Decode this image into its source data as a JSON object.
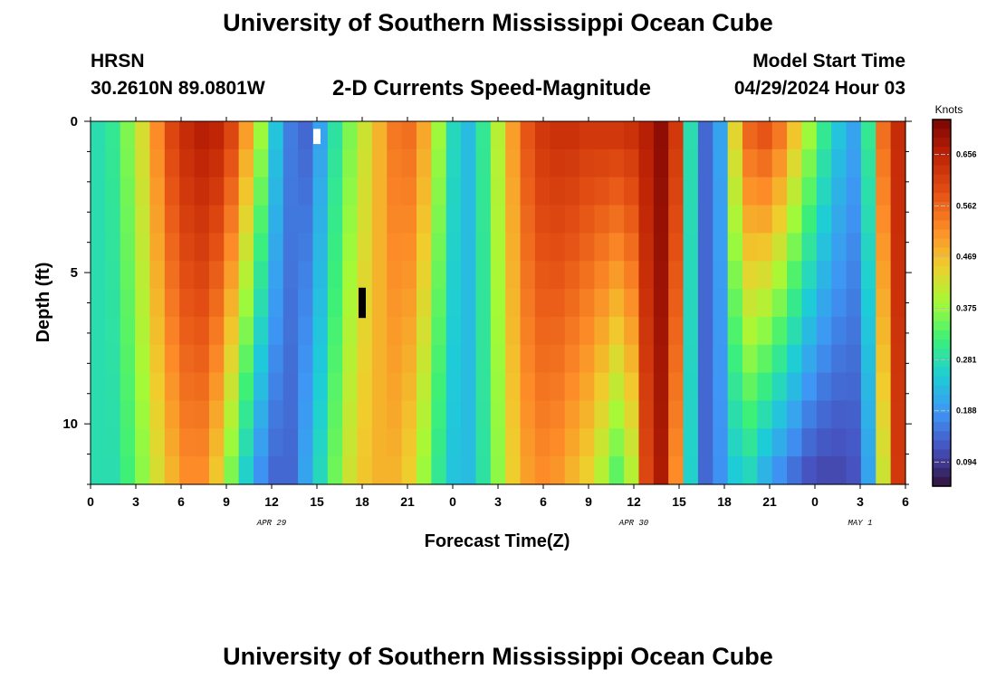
{
  "header": {
    "title": "University of Southern Mississippi Ocean Cube",
    "station": "HRSN",
    "coords": "30.2610N  89.0801W",
    "plot_title": "2-D Currents Speed-Magnitude",
    "model_start_label": "Model Start Time",
    "model_start_value": "04/29/2024 Hour 03"
  },
  "footer": {
    "title": "University of Southern Mississippi Ocean Cube"
  },
  "chart_data": {
    "type": "heatmap",
    "title": "2-D Currents Speed-Magnitude",
    "xlabel": "Forecast Time(Z)",
    "ylabel": "Depth (ft)",
    "x_tick_labels": [
      "0",
      "3",
      "6",
      "9",
      "12",
      "15",
      "18",
      "21",
      "0",
      "3",
      "6",
      "9",
      "12",
      "15",
      "18",
      "21",
      "0",
      "3",
      "6"
    ],
    "x_range_hours": [
      0,
      54
    ],
    "date_labels": [
      {
        "text": "APR 29",
        "hour": 12
      },
      {
        "text": "APR 30",
        "hour": 36
      },
      {
        "text": "MAY 1",
        "hour": 51
      }
    ],
    "y_tick_labels": [
      "0",
      "5",
      "10"
    ],
    "y_range_ft": [
      0,
      12
    ],
    "colorbar": {
      "label": "Knots",
      "ticks": [
        "0.656",
        "0.562",
        "0.469",
        "0.375",
        "0.281",
        "0.188",
        "0.094"
      ],
      "tick_values": [
        0.656,
        0.562,
        0.469,
        0.375,
        0.281,
        0.188,
        0.094
      ],
      "range": [
        0.05,
        0.72
      ]
    },
    "depth_levels_ft": [
      0,
      1,
      2,
      3,
      4,
      5,
      6,
      7,
      8,
      9,
      10,
      11,
      12
    ],
    "surface_speed_knots": [
      0.28,
      0.3,
      0.36,
      0.43,
      0.52,
      0.6,
      0.64,
      0.66,
      0.65,
      0.6,
      0.5,
      0.38,
      0.24,
      0.16,
      0.14,
      0.2,
      0.29,
      0.36,
      0.42,
      0.48,
      0.54,
      0.55,
      0.49,
      0.38,
      0.27,
      0.23,
      0.3,
      0.4,
      0.5,
      0.58,
      0.62,
      0.63,
      0.63,
      0.62,
      0.62,
      0.62,
      0.63,
      0.66,
      0.7,
      0.62,
      0.28,
      0.14,
      0.2,
      0.44,
      0.56,
      0.58,
      0.54,
      0.46,
      0.38,
      0.3,
      0.24,
      0.2,
      0.3,
      0.55,
      0.64
    ],
    "bottom_speed_knots": [
      0.28,
      0.28,
      0.32,
      0.37,
      0.43,
      0.48,
      0.52,
      0.52,
      0.46,
      0.36,
      0.26,
      0.18,
      0.14,
      0.14,
      0.2,
      0.27,
      0.35,
      0.42,
      0.46,
      0.48,
      0.48,
      0.45,
      0.38,
      0.3,
      0.24,
      0.23,
      0.29,
      0.37,
      0.45,
      0.5,
      0.52,
      0.51,
      0.48,
      0.45,
      0.4,
      0.34,
      0.4,
      0.6,
      0.67,
      0.52,
      0.26,
      0.14,
      0.18,
      0.25,
      0.27,
      0.22,
      0.18,
      0.15,
      0.12,
      0.11,
      0.11,
      0.12,
      0.2,
      0.42,
      0.62
    ],
    "flags": [
      {
        "hour": 15,
        "depth_ft": 0.25,
        "color": "white"
      },
      {
        "hour": 18,
        "depth_ft": 6,
        "color": "black"
      }
    ]
  }
}
